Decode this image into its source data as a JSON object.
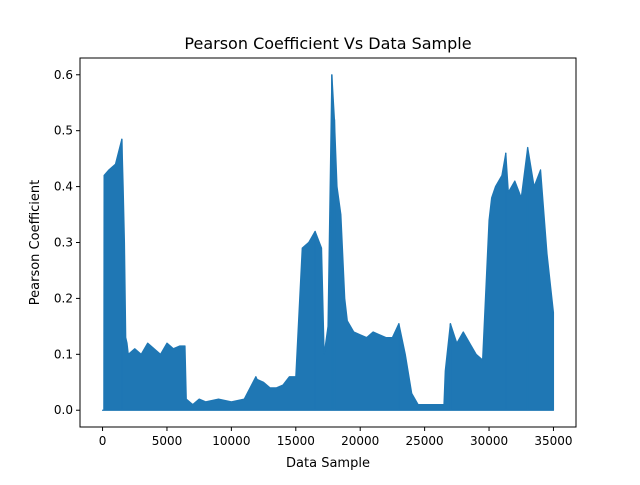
{
  "chart_data": {
    "type": "line",
    "title": "Pearson Coefficient Vs Data Sample",
    "xlabel": "Data Sample",
    "ylabel": "Pearson Coefficient",
    "xlim": [
      -1750,
      36750
    ],
    "ylim": [
      -0.03,
      0.63
    ],
    "xticks": [
      0,
      5000,
      10000,
      15000,
      20000,
      25000,
      30000,
      35000
    ],
    "yticks": [
      0.0,
      0.1,
      0.2,
      0.3,
      0.4,
      0.5,
      0.6
    ],
    "xtick_labels": [
      "0",
      "5000",
      "10000",
      "15000",
      "20000",
      "25000",
      "30000",
      "35000"
    ],
    "ytick_labels": [
      "0.0",
      "0.1",
      "0.2",
      "0.3",
      "0.4",
      "0.5",
      "0.6"
    ],
    "grid": false,
    "series": [
      {
        "color": "#1f77b4",
        "envelope": {
          "x": [
            0,
            100,
            120,
            500,
            1000,
            1500,
            1600,
            1700,
            1800,
            1900,
            2000,
            2500,
            3000,
            3500,
            4000,
            4500,
            5000,
            5500,
            6000,
            6400,
            6500,
            7000,
            7500,
            8000,
            9000,
            10000,
            11000,
            11900,
            12000,
            12500,
            13000,
            13500,
            14000,
            14500,
            15000,
            15500,
            16000,
            16500,
            17000,
            17200,
            17500,
            17800,
            18000,
            18200,
            18500,
            18800,
            19000,
            19500,
            20000,
            20500,
            21000,
            21500,
            22000,
            22500,
            23000,
            23500,
            24000,
            24500,
            25000,
            25500,
            26000,
            26500,
            26600,
            27000,
            27500,
            28000,
            28500,
            29000,
            29500,
            30000,
            30200,
            30500,
            31000,
            31300,
            31500,
            32000,
            32500,
            33000,
            33500,
            34000,
            34500,
            35000
          ],
          "upper": [
            0.0,
            0.0,
            0.42,
            0.43,
            0.44,
            0.485,
            0.4,
            0.3,
            0.13,
            0.12,
            0.1,
            0.11,
            0.1,
            0.12,
            0.11,
            0.1,
            0.12,
            0.11,
            0.115,
            0.115,
            0.02,
            0.01,
            0.02,
            0.015,
            0.02,
            0.015,
            0.02,
            0.06,
            0.055,
            0.05,
            0.04,
            0.04,
            0.045,
            0.06,
            0.06,
            0.29,
            0.3,
            0.32,
            0.29,
            0.1,
            0.15,
            0.6,
            0.52,
            0.4,
            0.35,
            0.2,
            0.16,
            0.14,
            0.135,
            0.13,
            0.14,
            0.135,
            0.13,
            0.13,
            0.155,
            0.1,
            0.03,
            0.01,
            0.01,
            0.01,
            0.01,
            0.01,
            0.07,
            0.155,
            0.12,
            0.14,
            0.12,
            0.1,
            0.09,
            0.34,
            0.38,
            0.4,
            0.42,
            0.46,
            0.39,
            0.41,
            0.38,
            0.47,
            0.4,
            0.43,
            0.28,
            0.175
          ],
          "lower": [
            0.0,
            0.0,
            0.0,
            0.0,
            0.0,
            0.0,
            0.0,
            0.0,
            0.0,
            0.0,
            0.0,
            0.0,
            0.0,
            0.0,
            0.0,
            0.0,
            0.0,
            0.0,
            0.0,
            0.0,
            0.0,
            0.0,
            0.0,
            0.0,
            0.0,
            0.0,
            0.0,
            0.0,
            0.0,
            0.0,
            0.0,
            0.0,
            0.0,
            0.0,
            0.0,
            0.0,
            0.0,
            0.0,
            0.0,
            0.0,
            0.0,
            0.0,
            0.0,
            0.0,
            0.0,
            0.0,
            0.0,
            0.0,
            0.0,
            0.0,
            0.0,
            0.0,
            0.0,
            0.0,
            0.0,
            0.0,
            0.0,
            0.0,
            0.0,
            0.0,
            0.0,
            0.0,
            0.0,
            0.0,
            0.0,
            0.0,
            0.0,
            0.0,
            0.0,
            0.0,
            0.0,
            0.0,
            0.0,
            0.0,
            0.0,
            0.0,
            0.0,
            0.0,
            0.0,
            0.0,
            0.0,
            0.0
          ]
        },
        "peaks": [
          {
            "x": 1500,
            "y": 0.485
          },
          {
            "x": 17800,
            "y": 0.6
          },
          {
            "x": 18000,
            "y": 0.52
          },
          {
            "x": 16500,
            "y": 0.32
          },
          {
            "x": 33000,
            "y": 0.47
          },
          {
            "x": 31300,
            "y": 0.46
          },
          {
            "x": 23000,
            "y": 0.155
          },
          {
            "x": 27000,
            "y": 0.155
          }
        ]
      }
    ]
  }
}
